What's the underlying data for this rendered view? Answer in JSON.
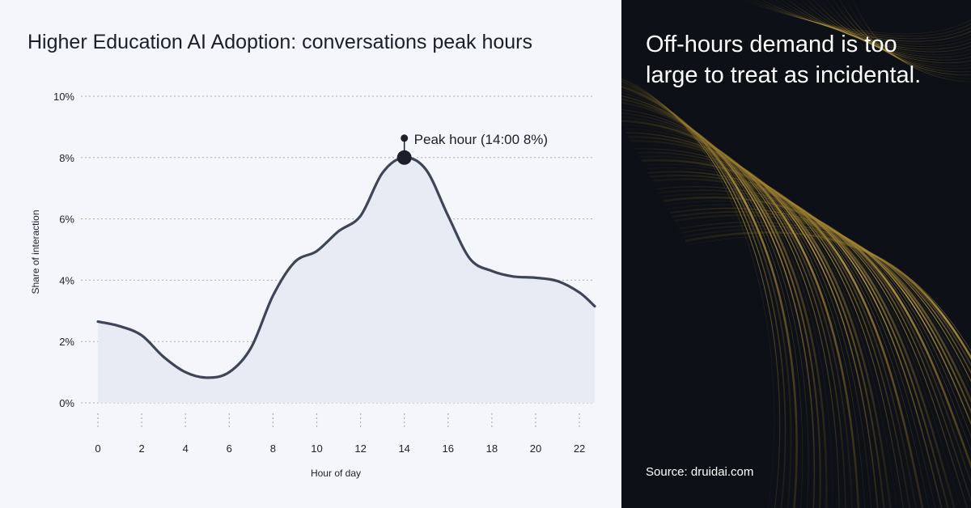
{
  "chart_data": {
    "type": "area",
    "title": "Higher Education AI Adoption: conversations peak hours",
    "xlabel": "Hour of day",
    "ylabel": "Share of interaction",
    "x_ticks": [
      0,
      2,
      4,
      6,
      8,
      10,
      12,
      14,
      16,
      18,
      20,
      22
    ],
    "y_ticks": [
      "0%",
      "2%",
      "4%",
      "6%",
      "8%",
      "10%"
    ],
    "xlim": [
      0,
      22.7
    ],
    "ylim": [
      0,
      10
    ],
    "grid": true,
    "series": [
      {
        "x": [
          0,
          1,
          2,
          3,
          4,
          5,
          6,
          7,
          8,
          9,
          10,
          11,
          12,
          13,
          14,
          15,
          16,
          17,
          18,
          19,
          20,
          21,
          22,
          22.7
        ],
        "y": [
          2.65,
          2.5,
          2.2,
          1.5,
          1.0,
          0.82,
          1.0,
          1.8,
          3.5,
          4.6,
          4.95,
          5.6,
          6.1,
          7.5,
          8.0,
          7.6,
          6.1,
          4.7,
          4.3,
          4.12,
          4.08,
          3.97,
          3.6,
          3.15
        ]
      }
    ],
    "annotation": {
      "label": "Peak hour (14:00  8%)",
      "x": 14,
      "y": 8
    },
    "colors": {
      "line": "#3d4557",
      "fill": "#e6ebf4",
      "grid": "#a9aeba"
    }
  },
  "panel": {
    "headline": "Off-hours demand is too large to treat as incidental.",
    "source": "Source: druidai.com"
  }
}
